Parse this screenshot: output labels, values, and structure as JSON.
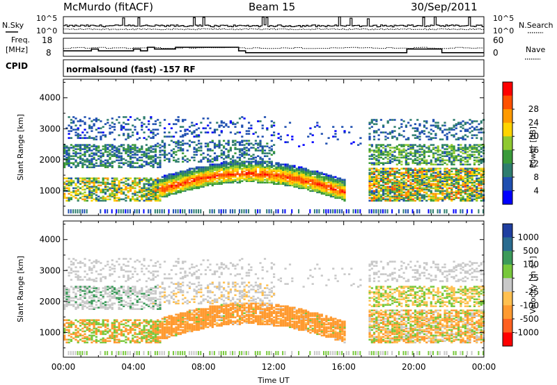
{
  "header": {
    "station": "McMurdo (fitACF)",
    "beam": "Beam 15",
    "date": "30/Sep/2011",
    "cpid_label": "CPID",
    "cpid_value": "normalsound (fast) -157 RF"
  },
  "strips": {
    "nsky_label": "N.Sky",
    "nsky_ticks": [
      "10^5",
      "10^0"
    ],
    "nsearch_label": "N.Search",
    "nsearch_ticks": [
      "10^5",
      "10^0"
    ],
    "freq_label_1": "Freq.",
    "freq_label_2": "[MHz]",
    "freq_ticks": [
      "18",
      "8"
    ],
    "nave_label": "Nave",
    "nave_ticks": [
      "60",
      "0"
    ]
  },
  "chart_data": [
    {
      "type": "heatmap",
      "name": "power",
      "ylabel": "Slant Range [km]",
      "xlabel": "",
      "ylim": [
        200,
        4600
      ],
      "y_ticks": [
        "1000",
        "2000",
        "3000",
        "4000"
      ],
      "x_ticks": [],
      "colorbar": {
        "label": "Power [dB]",
        "ticks": [
          "4",
          "8",
          "12",
          "16",
          "20",
          "24",
          "28"
        ],
        "colors": [
          "#0000ff",
          "#1f4fb0",
          "#2e7d6e",
          "#3a9a3a",
          "#8fc930",
          "#ffd400",
          "#ff9900",
          "#ff5000",
          "#ff0000"
        ]
      },
      "echo_bands_hours": [
        {
          "start": 0.0,
          "end": 15.5,
          "r_low": 700,
          "r_high": 1900,
          "value_db": 20
        },
        {
          "start": 5.0,
          "end": 16.0,
          "r_low": 800,
          "r_high": 1500,
          "value_db": 26
        },
        {
          "start": 17.5,
          "end": 24.0,
          "r_low": 700,
          "r_high": 2300,
          "value_db": 14
        }
      ]
    },
    {
      "type": "heatmap",
      "name": "velocity",
      "ylabel": "Slant Range [km]",
      "xlabel": "Time UT",
      "ylim": [
        200,
        4600
      ],
      "y_ticks": [
        "1000",
        "2000",
        "3000",
        "4000"
      ],
      "x_ticks": [
        "00:00",
        "04:00",
        "08:00",
        "12:00",
        "16:00",
        "20:00",
        "00:00"
      ],
      "colorbar": {
        "label": "Velocity [m s",
        "label_sup": "-1",
        "label_end": "]",
        "ticks": [
          "1000",
          "500",
          "100",
          "25",
          "-25",
          "-100",
          "-500",
          "-1000"
        ],
        "colors": [
          "#1f3fa0",
          "#2a6b8f",
          "#3c9a5a",
          "#78c83c",
          "#c8c8c8",
          "#ffc050",
          "#ff9a30",
          "#ff6020",
          "#ff0000"
        ]
      },
      "echo_bands_hours": [
        {
          "start": 5.0,
          "end": 15.8,
          "r_low": 800,
          "r_high": 1700,
          "value_ms": -150
        },
        {
          "start": 0.0,
          "end": 7.0,
          "r_low": 1800,
          "r_high": 2800,
          "value_ms": 0
        },
        {
          "start": 17.5,
          "end": 24.0,
          "r_low": 700,
          "r_high": 2200,
          "value_ms": -60
        }
      ]
    }
  ]
}
